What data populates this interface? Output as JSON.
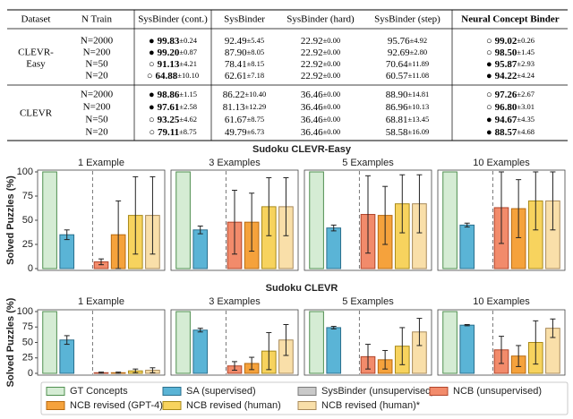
{
  "table": {
    "headers": [
      "Dataset",
      "N Train",
      "SysBinder (cont.)",
      "SysBinder",
      "SysBinder (hard)",
      "SysBinder (step)",
      "Neural Concept Binder"
    ],
    "groups": [
      {
        "dataset_lines": [
          "CLEVR-",
          "Easy"
        ],
        "rows": [
          {
            "n": "N=2000",
            "cells": [
              {
                "marker": "●",
                "mean": "99.83",
                "std": "±0.24"
              },
              {
                "mean": "92.49",
                "std": "±5.45"
              },
              {
                "mean": "22.92",
                "std": "±0.00"
              },
              {
                "mean": "95.76",
                "std": "±4.92"
              },
              {
                "marker": "○",
                "mean": "99.02",
                "std": "±0.26"
              }
            ]
          },
          {
            "n": "N=200",
            "cells": [
              {
                "marker": "●",
                "mean": "99.20",
                "std": "±0.87"
              },
              {
                "mean": "87.90",
                "std": "±8.05"
              },
              {
                "mean": "22.92",
                "std": "±0.00"
              },
              {
                "mean": "92.69",
                "std": "±2.80"
              },
              {
                "marker": "○",
                "mean": "98.50",
                "std": "±1.45"
              }
            ]
          },
          {
            "n": "N=50",
            "cells": [
              {
                "marker": "○",
                "mean": "91.13",
                "std": "±4.21"
              },
              {
                "mean": "78.41",
                "std": "±8.15"
              },
              {
                "mean": "22.92",
                "std": "±0.00"
              },
              {
                "mean": "70.64",
                "std": "±11.89"
              },
              {
                "marker": "●",
                "mean": "95.87",
                "std": "±2.93"
              }
            ]
          },
          {
            "n": "N=20",
            "cells": [
              {
                "marker": "○",
                "mean": "64.88",
                "std": "±10.10"
              },
              {
                "mean": "62.61",
                "std": "±7.18"
              },
              {
                "mean": "22.92",
                "std": "±0.00"
              },
              {
                "mean": "60.57",
                "std": "±11.08"
              },
              {
                "marker": "●",
                "mean": "94.22",
                "std": "±4.24"
              }
            ]
          }
        ]
      },
      {
        "dataset_lines": [
          "CLEVR"
        ],
        "rows": [
          {
            "n": "N=2000",
            "cells": [
              {
                "marker": "●",
                "mean": "98.86",
                "std": "±1.15"
              },
              {
                "mean": "86.22",
                "std": "±10.40"
              },
              {
                "mean": "36.46",
                "std": "±0.00"
              },
              {
                "mean": "88.90",
                "std": "±14.81"
              },
              {
                "marker": "○",
                "mean": "97.26",
                "std": "±2.67"
              }
            ]
          },
          {
            "n": "N=200",
            "cells": [
              {
                "marker": "●",
                "mean": "97.61",
                "std": "±2.58"
              },
              {
                "mean": "81.13",
                "std": "±12.29"
              },
              {
                "mean": "36.46",
                "std": "±0.00"
              },
              {
                "mean": "86.96",
                "std": "±10.13"
              },
              {
                "marker": "○",
                "mean": "96.80",
                "std": "±3.01"
              }
            ]
          },
          {
            "n": "N=50",
            "cells": [
              {
                "marker": "○",
                "mean": "93.25",
                "std": "±4.62"
              },
              {
                "mean": "61.67",
                "std": "±8.75"
              },
              {
                "mean": "36.46",
                "std": "±0.00"
              },
              {
                "mean": "68.81",
                "std": "±13.45"
              },
              {
                "marker": "●",
                "mean": "94.67",
                "std": "±4.35"
              }
            ]
          },
          {
            "n": "N=20",
            "cells": [
              {
                "marker": "○",
                "mean": "79.11",
                "std": "±8.75"
              },
              {
                "mean": "49.79",
                "std": "±6.73"
              },
              {
                "mean": "36.46",
                "std": "±0.00"
              },
              {
                "mean": "58.58",
                "std": "±16.09"
              },
              {
                "marker": "●",
                "mean": "88.57",
                "std": "±4.68"
              }
            ]
          }
        ]
      }
    ]
  },
  "chart_data": [
    {
      "type": "bar",
      "title": "Sudoku CLEVR-Easy",
      "y_label": "Solved Puzzles (%)",
      "panels": [
        "1 Example",
        "3 Examples",
        "5 Examples",
        "10 Examples"
      ],
      "ylim": [
        0,
        100
      ],
      "yticks": [
        0,
        25,
        50,
        75,
        100
      ],
      "series": [
        {
          "name": "GT Concepts",
          "color": "#d5ecd4",
          "values": [
            100,
            100,
            100,
            100
          ],
          "errors": [
            null,
            null,
            null,
            null
          ]
        },
        {
          "name": "SA (supervised)",
          "color": "#5ab4d6",
          "values": [
            35,
            40,
            42,
            45
          ],
          "errors": [
            5,
            4,
            3,
            2
          ]
        },
        {
          "name": "SysBinder (unsupervised)",
          "color": "#c9c9c9",
          "values": [
            0,
            0,
            0,
            0
          ],
          "errors": [
            null,
            null,
            null,
            null
          ]
        },
        {
          "name": "NCB (unsupervised)",
          "color": "#f28b6b",
          "values": [
            7,
            48,
            56,
            63
          ],
          "errors": [
            3,
            33,
            40,
            37
          ]
        },
        {
          "name": "NCB revised (GPT-4)",
          "color": "#f5a23c",
          "values": [
            35,
            48,
            55,
            62
          ],
          "errors": [
            35,
            30,
            30,
            30
          ]
        },
        {
          "name": "NCB revised (human)",
          "color": "#f7d35e",
          "values": [
            55,
            64,
            67,
            70
          ],
          "errors": [
            40,
            30,
            30,
            30
          ]
        },
        {
          "name": "NCB revised (human)*",
          "color": "#f9dfa9",
          "values": [
            55,
            64,
            67,
            70
          ],
          "errors": [
            40,
            30,
            30,
            30
          ]
        }
      ]
    },
    {
      "type": "bar",
      "title": "Sudoku CLEVR",
      "y_label": "Solved Puzzles (%)",
      "panels": [
        "1 Example",
        "3 Examples",
        "5 Examples",
        "10 Examples"
      ],
      "ylim": [
        0,
        100
      ],
      "yticks": [
        0,
        25,
        50,
        75,
        100
      ],
      "series": [
        {
          "color": "#d5ecd4",
          "values": [
            100,
            100,
            100,
            100
          ],
          "errors": [
            null,
            null,
            null,
            null
          ]
        },
        {
          "color": "#5ab4d6",
          "values": [
            54,
            70,
            74,
            78
          ],
          "errors": [
            7,
            3,
            2,
            1
          ]
        },
        {
          "color": "#c9c9c9",
          "values": [
            0,
            0,
            0,
            0
          ],
          "errors": [
            null,
            null,
            null,
            null
          ]
        },
        {
          "color": "#f28b6b",
          "values": [
            1,
            12,
            27,
            38
          ],
          "errors": [
            1,
            7,
            20,
            22
          ]
        },
        {
          "color": "#f5a23c",
          "values": [
            1,
            16,
            22,
            28
          ],
          "errors": [
            1,
            10,
            15,
            17
          ]
        },
        {
          "color": "#f7d35e",
          "values": [
            4,
            36,
            44,
            50
          ],
          "errors": [
            3,
            30,
            30,
            35
          ]
        },
        {
          "color": "#f9dfa9",
          "values": [
            5,
            54,
            67,
            73
          ],
          "errors": [
            4,
            25,
            22,
            15
          ]
        }
      ]
    }
  ]
}
